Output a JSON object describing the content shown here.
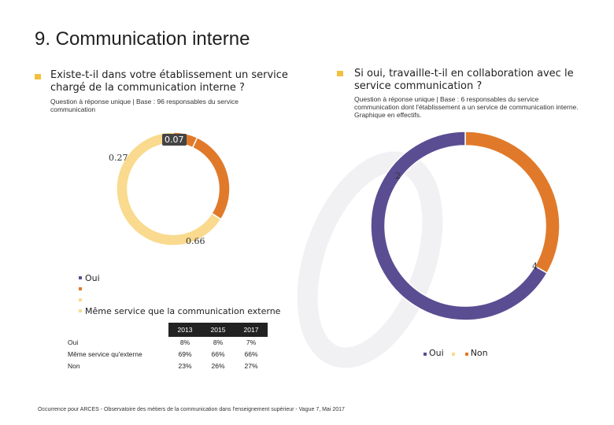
{
  "title": "9. Communication interne",
  "colors": {
    "bullet": "#F0C040",
    "oui": "#5B4D92",
    "meme_service": "#F9DA8E",
    "non": "#E07A2A",
    "dark": "#222222"
  },
  "left": {
    "question": [
      "Existe-t-il dans votre établissement un service",
      "chargé de la communication interne ?"
    ],
    "subtitle": [
      "Question à réponse unique | Base : 96 responsables du service",
      "communication"
    ],
    "legend": [
      {
        "label": "Oui",
        "color": "#5B4D92"
      },
      {
        "label": "",
        "color": "#E07A2A"
      },
      {
        "label": "",
        "color": "#F9DA8E"
      },
      {
        "label": "Même service que la communication externe",
        "color": "#F9DA8E"
      }
    ],
    "table": {
      "headers": [
        "",
        "2013",
        "2015",
        "2017"
      ],
      "rows": [
        {
          "label": "Oui",
          "values": [
            "8%",
            "8%",
            "7%"
          ]
        },
        {
          "label": "Même service qu'externe",
          "values": [
            "69%",
            "66%",
            "66%"
          ]
        },
        {
          "label": "Non",
          "values": [
            "23%",
            "26%",
            "27%"
          ]
        }
      ]
    }
  },
  "right": {
    "question": [
      "Si oui, travaille-t-il en collaboration avec le",
      "service communication ?"
    ],
    "subtitle": [
      "Question à réponse unique | Base : 6 responsables du service",
      "communication dont l'établissement a un service de communication interne.",
      "Graphique en effectifs."
    ],
    "legend": [
      {
        "label": "Oui",
        "color": "#5B4D92"
      },
      {
        "label": "",
        "color": "#F9DA8E"
      },
      {
        "label": "Non",
        "color": "#E07A2A"
      }
    ]
  },
  "footer": "Occurrence pour ARCES - Observatoire des métiers de la communication dans l'enseignement supérieur - Vague 7, Mai 2017",
  "chart_data": [
    {
      "type": "pie",
      "donut": true,
      "categories": [
        "Oui",
        "Non",
        "Même service"
      ],
      "values": [
        0.07,
        0.27,
        0.66
      ],
      "labels": [
        "0.07",
        "0.27",
        "0.66"
      ],
      "colors": [
        "#E07A2A",
        "#E07A2A",
        "#F9DA8E"
      ]
    },
    {
      "type": "pie",
      "donut": true,
      "categories": [
        "Non",
        "Oui"
      ],
      "values": [
        2,
        4
      ],
      "labels": [
        "2",
        "4"
      ],
      "colors": [
        "#E07A2A",
        "#5B4D92"
      ]
    }
  ]
}
